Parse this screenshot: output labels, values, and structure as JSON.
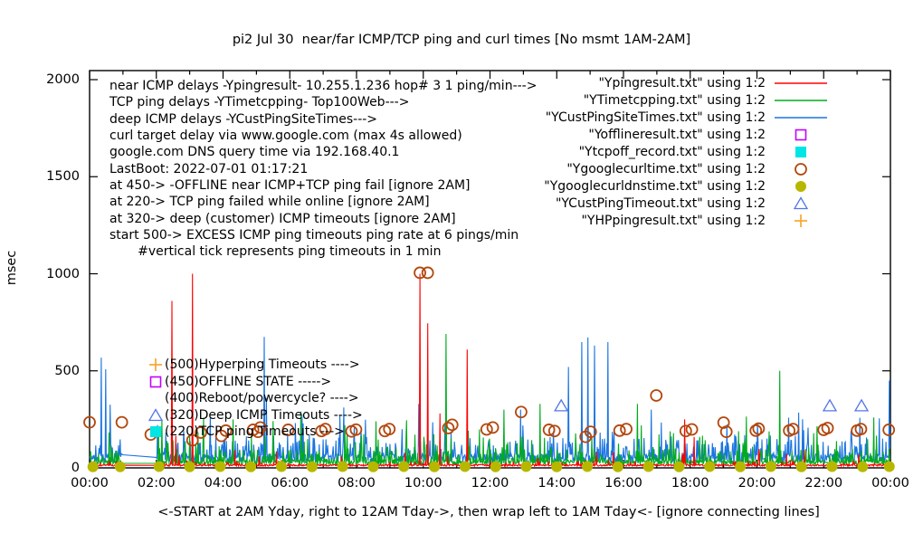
{
  "window_title": "pi2 Jul 30  near/far ICMP/TCP ping and curl times [No msmt 1AM-2AM]",
  "chart_data": {
    "type": "line",
    "title": "pi2 Jul 30  near/far ICMP/TCP ping and curl times [No msmt 1AM-2AM]",
    "ylabel": "msec",
    "xlabel": "<-START at 2AM Yday, right to 12AM Tday->, then wrap left to 1AM Tday<- [ignore connecting lines]",
    "ylim": [
      0,
      2000
    ],
    "y_ticks": [
      0,
      500,
      1000,
      1500,
      2000
    ],
    "x_ticks": [
      "00:00",
      "02:00",
      "04:00",
      "06:00",
      "08:00",
      "10:00",
      "12:00",
      "14:00",
      "16:00",
      "18:00",
      "20:00",
      "22:00",
      "00:00"
    ],
    "x_hours_span": 24,
    "grid": false,
    "no_measurement_window": [
      "01:00",
      "02:00"
    ],
    "info_lines": [
      "near ICMP delays -Ypingresult- 10.255.1.236 hop# 3 1 ping/min--->",
      "TCP ping delays -YTimetcpping- Top100Web--->",
      "deep ICMP delays -YCustPingSiteTimes--->",
      "curl target delay via www.google.com (max 4s allowed)",
      "google.com DNS query time via 192.168.40.1",
      "LastBoot: 2022-07-01 01:17:21",
      "at 450-> -OFFLINE near ICMP+TCP ping fail [ignore 2AM]",
      "at 220-> TCP ping failed while online [ignore 2AM]",
      "at 320-> deep (customer) ICMP timeouts [ignore 2AM]",
      "start 500-> EXCESS ICMP ping timeouts ping rate at 6 pings/min",
      "       #vertical tick represents ping timeouts in 1 min"
    ],
    "legend": [
      {
        "label": "\"Ypingresult.txt\" using 1:2",
        "style": "line",
        "color": "#ff0000"
      },
      {
        "label": "\"YTimetcpping.txt\" using 1:2",
        "style": "line",
        "color": "#00ab1d"
      },
      {
        "label": "\"YCustPingSiteTimes.txt\" using 1:2",
        "style": "line",
        "color": "#1b74e0"
      },
      {
        "label": "\"Yofflineresult.txt\" using 1:2",
        "style": "open-square",
        "color": "#c400ff"
      },
      {
        "label": "\"Ytcpoff_record.txt\" using 1:2",
        "style": "filled-square",
        "color": "#00e5e5"
      },
      {
        "label": "\"Ygooglecurltime.txt\" using 1:2",
        "style": "open-circle",
        "color": "#b2480e"
      },
      {
        "label": "\"Ygooglecurldnstime.txt\" using 1:2",
        "style": "filled-circle",
        "color": "#b7b700"
      },
      {
        "label": "\"YCustPingTimeout.txt\" using 1:2",
        "style": "open-triangle",
        "color": "#5276e8"
      },
      {
        "label": "\"YHPpingresult.txt\" using 1:2",
        "style": "plus",
        "color": "#f6a632"
      }
    ],
    "annotations": [
      {
        "label": "(500)Hyperping Timeouts ---->",
        "marker": "plus",
        "color": "#f6a632",
        "level": 500
      },
      {
        "label": "(450)OFFLINE STATE ----->",
        "marker": "open-square",
        "color": "#c400ff",
        "level": 450
      },
      {
        "label": "(400)Reboot/powercycle? ---->",
        "marker": "none",
        "color": "",
        "level": 400
      },
      {
        "label": "(320)Deep ICMP Timeouts ---->",
        "marker": "open-triangle",
        "color": "#5276e8",
        "level": 320
      },
      {
        "label": "(220)TCP ping Timeouts --->",
        "marker": "filled-square",
        "color": "#00e5e5",
        "level": 220
      }
    ],
    "series": [
      {
        "name": "YCustPingSiteTimes.txt",
        "type": "line",
        "color": "#1b74e0",
        "noise": {
          "seed": 11,
          "base": 28,
          "jitter": 45,
          "p1": 0.3,
          "a1": 100,
          "p2": 0.05,
          "a2": 155
        },
        "spikes": [
          [
            "00:21",
            568
          ],
          [
            "00:29",
            508
          ],
          [
            "00:37",
            326
          ],
          [
            "03:37",
            260
          ],
          [
            "05:14",
            675
          ],
          [
            "05:18",
            360
          ],
          [
            "09:52",
            330
          ],
          [
            "12:55",
            300
          ],
          [
            "14:21",
            520
          ],
          [
            "14:45",
            648
          ],
          [
            "14:56",
            672
          ],
          [
            "15:08",
            630
          ],
          [
            "15:32",
            648
          ],
          [
            "16:50",
            300
          ],
          [
            "21:15",
            285
          ],
          [
            "23:40",
            255
          ],
          [
            "23:58",
            450
          ]
        ]
      },
      {
        "name": "YTimetcpping.txt",
        "type": "line",
        "color": "#00ab1d",
        "noise": {
          "seed": 23,
          "base": 15,
          "jitter": 25,
          "p1": 0.22,
          "a1": 70,
          "p2": 0.045,
          "a2": 150
        },
        "spikes": [
          [
            "02:10",
            250
          ],
          [
            "03:25",
            255
          ],
          [
            "04:18",
            250
          ],
          [
            "06:20",
            290
          ],
          [
            "08:35",
            240
          ],
          [
            "09:30",
            245
          ],
          [
            "10:41",
            690
          ],
          [
            "12:25",
            300
          ],
          [
            "13:30",
            330
          ],
          [
            "16:25",
            330
          ],
          [
            "19:41",
            265
          ],
          [
            "20:41",
            500
          ],
          [
            "21:48",
            215
          ],
          [
            "23:30",
            260
          ]
        ]
      },
      {
        "name": "Ypingresult.txt",
        "type": "line",
        "color": "#ff0000",
        "noise": {
          "seed": 5,
          "base": 9,
          "jitter": 9,
          "p1": 0.06,
          "a1": 26,
          "p2": 0.012,
          "a2": 80
        },
        "spikes": [
          [
            "02:28",
            860
          ],
          [
            "02:35",
            165
          ],
          [
            "03:05",
            1000
          ],
          [
            "09:54",
            1000
          ],
          [
            "10:08",
            745
          ],
          [
            "10:30",
            280
          ],
          [
            "11:19",
            610
          ],
          [
            "17:50",
            250
          ],
          [
            "18:07",
            160
          ]
        ]
      },
      {
        "name": "Yofflineresult.txt",
        "type": "points",
        "marker": "open-square",
        "color": "#c400ff",
        "points": []
      },
      {
        "name": "Ytcpoff_record.txt",
        "type": "points",
        "marker": "filled-square",
        "color": "#00e5e5",
        "points": []
      },
      {
        "name": "Ygooglecurltime.txt",
        "type": "points",
        "marker": "open-circle",
        "color": "#b2480e",
        "points": [
          [
            "00:00",
            235
          ],
          [
            "00:58",
            235
          ],
          [
            "01:50",
            172
          ],
          [
            "03:05",
            142
          ],
          [
            "03:20",
            182
          ],
          [
            "03:57",
            165
          ],
          [
            "04:05",
            192
          ],
          [
            "04:54",
            196
          ],
          [
            "05:03",
            186
          ],
          [
            "05:07",
            208
          ],
          [
            "05:57",
            196
          ],
          [
            "06:57",
            190
          ],
          [
            "07:04",
            200
          ],
          [
            "07:51",
            188
          ],
          [
            "07:59",
            197
          ],
          [
            "08:51",
            190
          ],
          [
            "08:59",
            200
          ],
          [
            "09:54",
            1005
          ],
          [
            "10:08",
            1005
          ],
          [
            "10:45",
            205
          ],
          [
            "10:52",
            222
          ],
          [
            "11:54",
            198
          ],
          [
            "12:05",
            208
          ],
          [
            "12:56",
            288
          ],
          [
            "13:46",
            196
          ],
          [
            "13:56",
            190
          ],
          [
            "14:52",
            160
          ],
          [
            "15:01",
            186
          ],
          [
            "15:53",
            192
          ],
          [
            "16:05",
            200
          ],
          [
            "16:59",
            373
          ],
          [
            "17:52",
            190
          ],
          [
            "18:03",
            198
          ],
          [
            "19:00",
            233
          ],
          [
            "19:05",
            186
          ],
          [
            "19:58",
            192
          ],
          [
            "20:03",
            202
          ],
          [
            "20:58",
            192
          ],
          [
            "21:05",
            200
          ],
          [
            "22:00",
            196
          ],
          [
            "22:07",
            205
          ],
          [
            "23:00",
            192
          ],
          [
            "23:07",
            200
          ],
          [
            "23:57",
            196
          ]
        ]
      },
      {
        "name": "Ygooglecurldnstime.txt",
        "type": "points",
        "marker": "filled-circle",
        "color": "#b7b700",
        "points": [
          [
            "00:06",
            6
          ],
          [
            "00:55",
            6
          ],
          [
            "02:05",
            7
          ],
          [
            "03:00",
            6
          ],
          [
            "03:55",
            7
          ],
          [
            "04:50",
            6
          ],
          [
            "05:45",
            7
          ],
          [
            "06:40",
            6
          ],
          [
            "07:35",
            7
          ],
          [
            "08:30",
            6
          ],
          [
            "09:25",
            7
          ],
          [
            "10:20",
            6
          ],
          [
            "11:15",
            7
          ],
          [
            "12:10",
            6
          ],
          [
            "13:05",
            7
          ],
          [
            "14:00",
            6
          ],
          [
            "14:55",
            7
          ],
          [
            "15:50",
            6
          ],
          [
            "16:45",
            7
          ],
          [
            "17:40",
            6
          ],
          [
            "18:35",
            7
          ],
          [
            "19:30",
            6
          ],
          [
            "20:25",
            7
          ],
          [
            "21:20",
            6
          ],
          [
            "22:15",
            7
          ],
          [
            "23:10",
            6
          ],
          [
            "23:58",
            7
          ]
        ]
      },
      {
        "name": "YCustPingTimeout.txt",
        "type": "points",
        "marker": "open-triangle",
        "color": "#5276e8",
        "points": [
          [
            "14:08",
            320
          ],
          [
            "22:11",
            320
          ],
          [
            "23:08",
            320
          ]
        ]
      },
      {
        "name": "YHPpingresult.txt",
        "type": "points",
        "marker": "plus",
        "color": "#f6a632",
        "points": []
      }
    ]
  }
}
